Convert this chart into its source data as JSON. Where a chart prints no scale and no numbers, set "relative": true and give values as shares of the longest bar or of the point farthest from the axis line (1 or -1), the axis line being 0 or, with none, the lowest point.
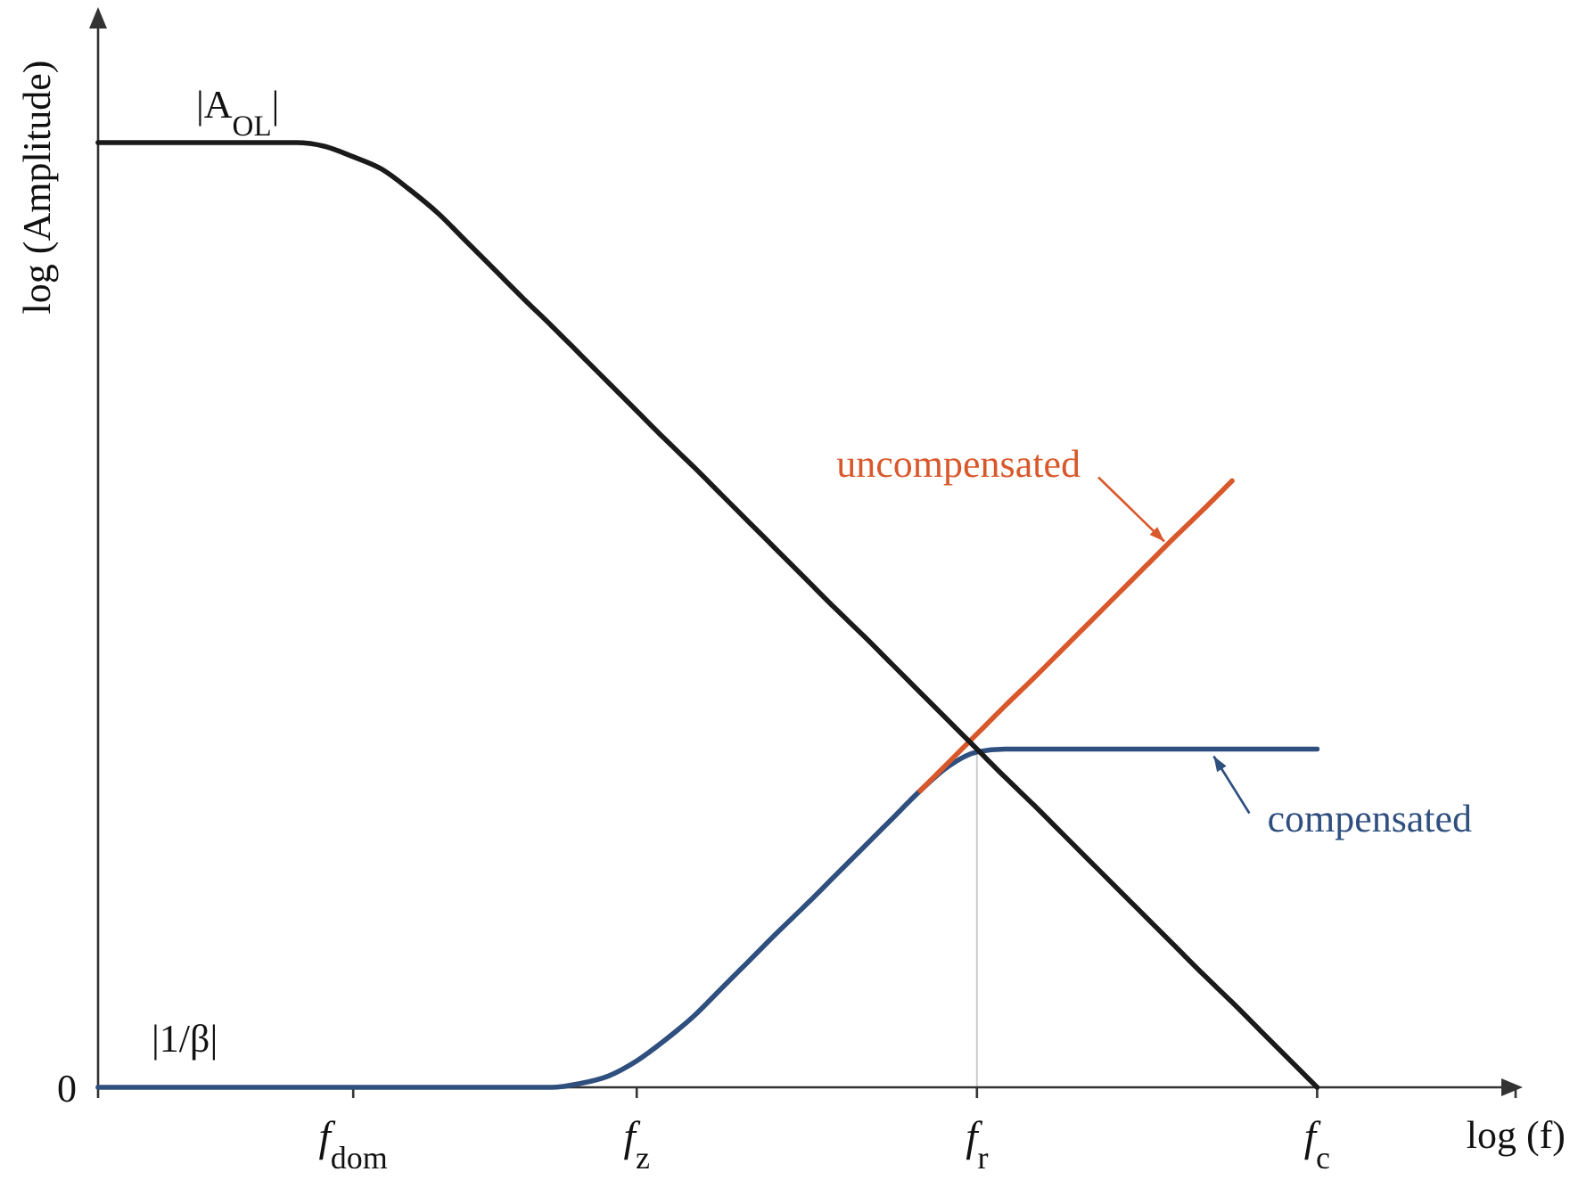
{
  "chart_data": {
    "type": "line",
    "relative": true,
    "xlabel": "log (f)",
    "ylabel": "log (Amplitude)",
    "categories": [
      null,
      null,
      null,
      null,
      null,
      null,
      null,
      null,
      null,
      "f$_{dom}$",
      null,
      null,
      null,
      null,
      null,
      null,
      null,
      null,
      null,
      "f$_{z}$",
      null,
      null,
      null,
      null,
      null,
      null,
      null,
      null,
      null,
      null,
      null,
      "f$_{r}$",
      null,
      null,
      null,
      null,
      null,
      null,
      null,
      null,
      null,
      null,
      null,
      "f$_{c}$",
      null,
      null,
      null,
      null,
      null,
      null,
      null
    ],
    "series": [
      {
        "name": "|A$_{OL}$|",
        "color": "#1a1a1a",
        "values": [
          1,
          1,
          1,
          1,
          1,
          1,
          1,
          1,
          0.996,
          0.985,
          0.972,
          0.95,
          0.925,
          0.895,
          0.865,
          0.835,
          0.806,
          0.776,
          0.746,
          0.716,
          0.686,
          0.657,
          0.627,
          0.597,
          0.567,
          0.537,
          0.507,
          0.478,
          0.448,
          0.418,
          0.388,
          0.358,
          0.328,
          0.299,
          0.269,
          0.239,
          0.209,
          0.179,
          0.149,
          0.119,
          0.09,
          0.06,
          0.03,
          0,
          null,
          null,
          null,
          null,
          null,
          null,
          null
        ]
      },
      {
        "name": "uncompensated",
        "color": "#d9582b",
        "values": [
          null,
          null,
          null,
          null,
          null,
          null,
          null,
          null,
          null,
          null,
          null,
          null,
          null,
          null,
          null,
          null,
          null,
          null,
          null,
          null,
          null,
          null,
          null,
          null,
          null,
          null,
          null,
          null,
          null,
          0.314,
          0.344,
          0.374,
          0.404,
          0.433,
          0.463,
          0.493,
          0.523,
          0.553,
          0.583,
          0.612,
          0.642,
          null,
          null,
          null,
          null,
          null,
          null,
          null,
          null,
          null,
          null
        ]
      },
      {
        "name": "compensated",
        "color": "#2f4f7f",
        "values": [
          0,
          0,
          0,
          0,
          0,
          0,
          0,
          0,
          0,
          0,
          0,
          0,
          0,
          0,
          0,
          0,
          0,
          0.004,
          0.012,
          0.028,
          0.05,
          0.075,
          0.105,
          0.135,
          0.165,
          0.194,
          0.224,
          0.254,
          0.284,
          0.314,
          0.34,
          0.355,
          0.358,
          0.358,
          0.358,
          0.358,
          0.358,
          0.358,
          0.358,
          0.358,
          0.358,
          0.358,
          0.358,
          0.358,
          null,
          null,
          null,
          null,
          null,
          null,
          null
        ]
      }
    ],
    "ref_lines": [
      {
        "axis": "x",
        "value": "f$_{r}$",
        "color": "#cccccc"
      }
    ],
    "annotations": [
      "0",
      {
        "text": "|1/β|",
        "y": 0
      }
    ]
  }
}
